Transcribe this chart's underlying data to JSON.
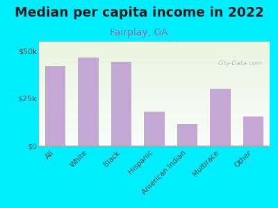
{
  "title": "Median per capita income in 2022",
  "subtitle": "Fairplay, GA",
  "categories": [
    "All",
    "White",
    "Black",
    "Hispanic",
    "American Indian",
    "Multirace",
    "Other"
  ],
  "values": [
    42000,
    46500,
    44500,
    18000,
    11500,
    30000,
    15500
  ],
  "bar_color": "#c4a8d4",
  "bg_outer": "#00eeff",
  "ylim": [
    0,
    55000
  ],
  "yticks": [
    0,
    25000,
    50000
  ],
  "ytick_labels": [
    "$0",
    "$25k",
    "$50k"
  ],
  "title_fontsize": 13.5,
  "subtitle_fontsize": 10,
  "title_color": "#1a1a1a",
  "subtitle_color": "#996699",
  "tick_color": "#444444",
  "watermark": "City-Data.com"
}
